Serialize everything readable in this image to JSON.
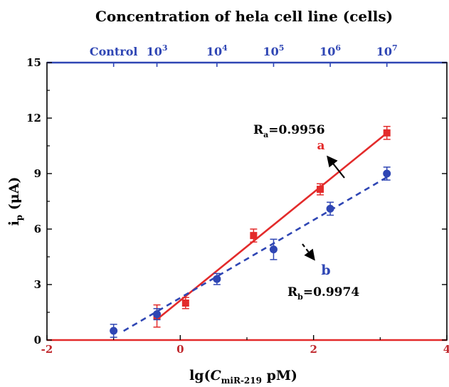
{
  "chart_data": {
    "type": "scatter",
    "title": "Concentration of hela cell line (cells)",
    "xlabel": {
      "prefix": "lg(",
      "italic": "C",
      "sub": "miR-219",
      "suffix": " pM)"
    },
    "ylabel": {
      "main": "i",
      "sub": "p",
      "unit": " (μA)"
    },
    "xlim": [
      -2,
      4
    ],
    "ylim": [
      0,
      15
    ],
    "x_ticks": [
      -2,
      0,
      2,
      4
    ],
    "y_ticks": [
      0,
      3,
      6,
      9,
      12,
      15
    ],
    "top_axis": {
      "labels": [
        {
          "text": "Control",
          "x": -1.0
        },
        {
          "base": "10",
          "exp": "3",
          "x": -0.35
        },
        {
          "base": "10",
          "exp": "4",
          "x": 0.55
        },
        {
          "base": "10",
          "exp": "5",
          "x": 1.4
        },
        {
          "base": "10",
          "exp": "6",
          "x": 2.25
        },
        {
          "base": "10",
          "exp": "7",
          "x": 3.1
        }
      ]
    },
    "series": [
      {
        "name": "a",
        "color": "#e32b2b",
        "marker": "square",
        "line_style": "solid",
        "fit_range": [
          -0.35,
          3.1
        ],
        "r_label": {
          "main": "R",
          "sub": "a",
          "value": "=0.9956"
        },
        "points": [
          {
            "x": -0.35,
            "y": 1.3,
            "err": 0.6
          },
          {
            "x": 0.08,
            "y": 2.0,
            "err": 0.3
          },
          {
            "x": 1.1,
            "y": 5.65,
            "err": 0.35
          },
          {
            "x": 2.1,
            "y": 8.15,
            "err": 0.3
          },
          {
            "x": 3.1,
            "y": 11.2,
            "err": 0.35
          }
        ]
      },
      {
        "name": "b",
        "color": "#2f46b4",
        "marker": "circle",
        "line_style": "dashed",
        "fit_range": [
          -0.85,
          3.1
        ],
        "r_label": {
          "main": "R",
          "sub": "b",
          "value": "=0.9974"
        },
        "points": [
          {
            "x": -1.0,
            "y": 0.5,
            "err": 0.35
          },
          {
            "x": -0.35,
            "y": 1.4,
            "err": 0.3
          },
          {
            "x": 0.55,
            "y": 3.3,
            "err": 0.3
          },
          {
            "x": 1.4,
            "y": 4.9,
            "err": 0.55
          },
          {
            "x": 2.25,
            "y": 7.1,
            "err": 0.35
          },
          {
            "x": 3.1,
            "y": 9.0,
            "err": 0.35
          }
        ]
      }
    ],
    "colors": {
      "axis": "#000000",
      "top_axis": "#2f46b4",
      "zero_line": "#e32b2b"
    }
  }
}
